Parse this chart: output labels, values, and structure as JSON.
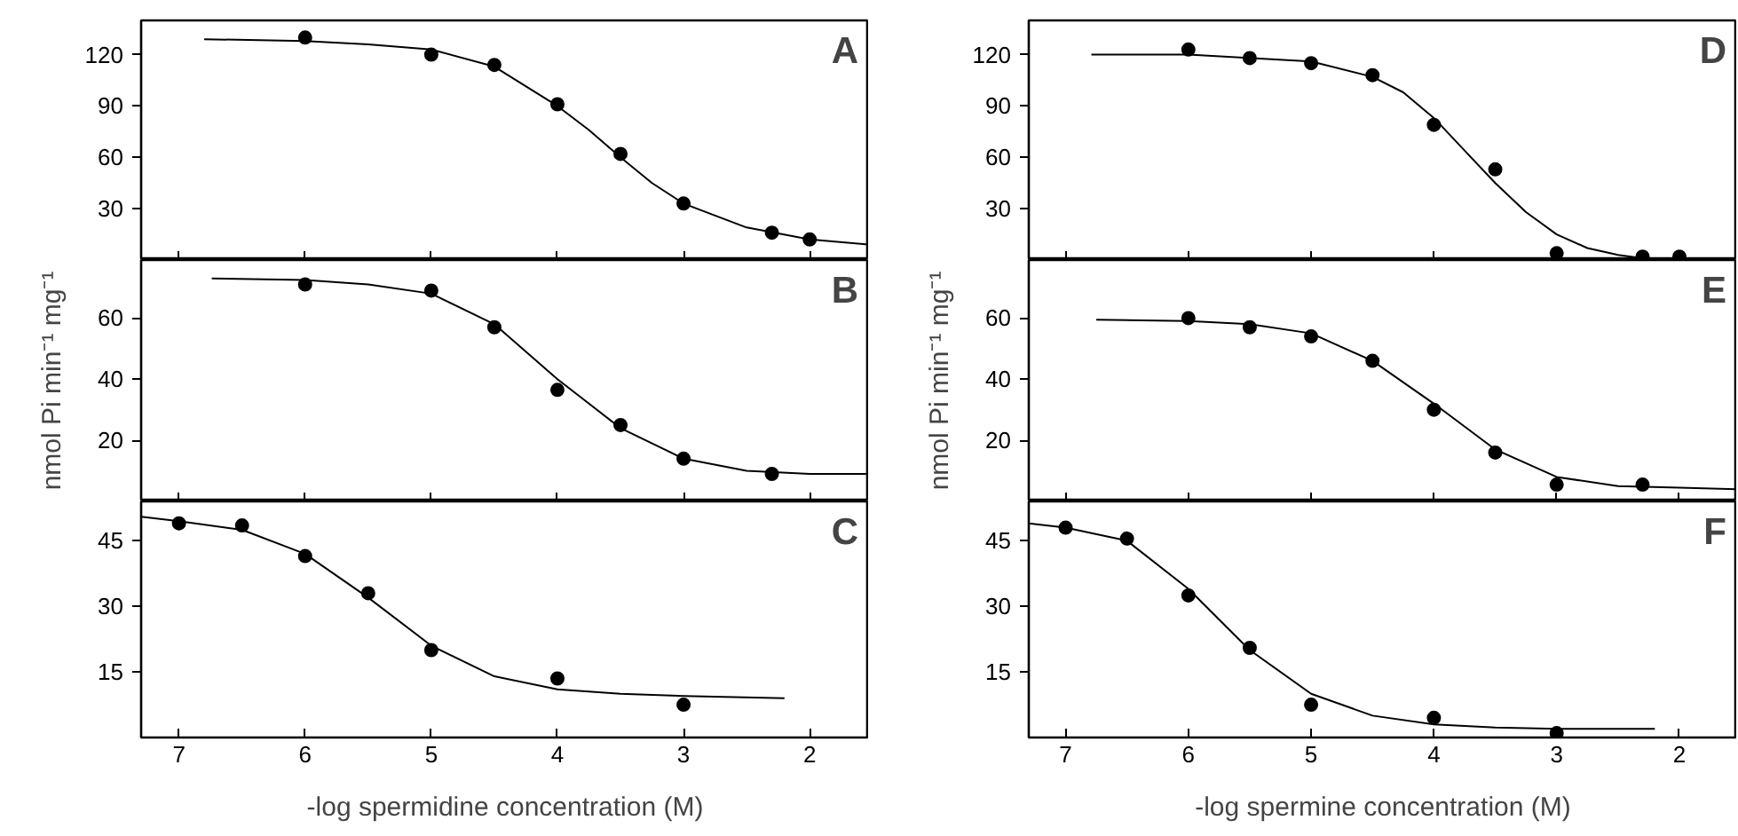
{
  "chart_data": [
    {
      "type": "scatter",
      "xlim": [
        7.3,
        1.53
      ],
      "xticks": [
        7,
        6,
        5,
        4,
        3,
        2
      ],
      "ylim": [
        0,
        140
      ],
      "yticks": [
        30,
        60,
        90,
        120
      ],
      "tick_labels": "y",
      "annotations": [
        "A"
      ],
      "series": [
        {
          "marker": "circle",
          "color": "#000000",
          "x": [
            6,
            5,
            4.5,
            4,
            3.5,
            3,
            2.3,
            2
          ],
          "values": [
            130,
            120,
            114,
            91,
            62,
            33,
            16,
            12
          ]
        },
        {
          "type": "line",
          "color": "#000000",
          "x": [
            6.8,
            6,
            5.5,
            5,
            4.5,
            4,
            3.75,
            3.5,
            3.25,
            3,
            2.5,
            2,
            1.53
          ],
          "values": [
            129,
            128,
            126,
            123,
            113,
            90,
            76,
            60,
            45,
            33,
            19,
            12,
            9
          ]
        }
      ]
    },
    {
      "type": "scatter",
      "xlim": [
        7.3,
        1.53
      ],
      "xticks": [
        7,
        6,
        5,
        4,
        3,
        2
      ],
      "ylim": [
        0,
        79
      ],
      "yticks": [
        20,
        40,
        60
      ],
      "tick_labels": "y",
      "ylabel": "nmol Pi min⁻¹ mg⁻¹",
      "annotations": [
        "B"
      ],
      "series": [
        {
          "marker": "circle",
          "color": "#000000",
          "x": [
            6,
            5,
            4.5,
            4,
            3.5,
            3,
            2.3
          ],
          "values": [
            71,
            69,
            57,
            36.5,
            25,
            14,
            9
          ]
        },
        {
          "type": "line",
          "color": "#000000",
          "x": [
            6.74,
            6,
            5.5,
            5,
            4.5,
            4,
            3.75,
            3.5,
            3,
            2.5,
            2,
            1.53
          ],
          "values": [
            73,
            72.5,
            71,
            68,
            58,
            40,
            32,
            24,
            14,
            10,
            9,
            9
          ]
        }
      ]
    },
    {
      "type": "scatter",
      "xlim": [
        7.3,
        1.53
      ],
      "xticks": [
        7,
        6,
        5,
        4,
        3,
        2
      ],
      "ylim": [
        0,
        54
      ],
      "yticks": [
        15,
        30,
        45
      ],
      "xlabel": "-log spermidine concentration (M)",
      "annotations": [
        "C"
      ],
      "series": [
        {
          "marker": "circle",
          "color": "#000000",
          "x": [
            7,
            6.5,
            6,
            5.5,
            5,
            4,
            3
          ],
          "values": [
            49,
            48.5,
            41.5,
            33,
            20,
            13.5,
            7.5
          ]
        },
        {
          "type": "line",
          "color": "#000000",
          "x": [
            7.3,
            7,
            6.5,
            6,
            5.5,
            5,
            4.5,
            4,
            3.5,
            3,
            2.2
          ],
          "values": [
            50.5,
            49.5,
            47.5,
            42,
            32,
            21,
            14,
            11,
            10,
            9.5,
            9
          ]
        }
      ]
    },
    {
      "type": "scatter",
      "xlim": [
        7.3,
        1.53
      ],
      "xticks": [
        7,
        6,
        5,
        4,
        3,
        2
      ],
      "ylim": [
        0,
        140
      ],
      "yticks": [
        30,
        60,
        90,
        120
      ],
      "tick_labels": "y",
      "annotations": [
        "D"
      ],
      "series": [
        {
          "marker": "circle",
          "color": "#000000",
          "x": [
            6,
            5.5,
            5,
            4.5,
            4,
            3.5,
            3,
            2.3,
            2
          ],
          "values": [
            123,
            118,
            115,
            108,
            79,
            53,
            4,
            2,
            2
          ]
        },
        {
          "type": "line",
          "color": "#000000",
          "x": [
            6.79,
            6,
            5,
            4.5,
            4.25,
            4,
            3.75,
            3.5,
            3.25,
            3,
            2.75,
            2.5,
            2.3,
            1.53
          ],
          "values": [
            120,
            120,
            116,
            107,
            98,
            83,
            64,
            45,
            28,
            15,
            7,
            3,
            1,
            0
          ]
        }
      ]
    },
    {
      "type": "scatter",
      "xlim": [
        7.3,
        1.53
      ],
      "xticks": [
        7,
        6,
        5,
        4,
        3,
        2
      ],
      "ylim": [
        0,
        79
      ],
      "yticks": [
        20,
        40,
        60
      ],
      "tick_labels": "y",
      "ylabel": "nmol Pi min⁻¹ mg⁻¹",
      "annotations": [
        "E"
      ],
      "series": [
        {
          "marker": "circle",
          "color": "#000000",
          "x": [
            6,
            5.5,
            5,
            4.5,
            4,
            3.5,
            3,
            2.3
          ],
          "values": [
            60,
            57,
            54,
            46,
            30,
            16,
            5.5,
            5.5
          ]
        },
        {
          "type": "line",
          "color": "#000000",
          "x": [
            6.75,
            6,
            5.5,
            5,
            4.5,
            4,
            3.5,
            3,
            2.5,
            2,
            1.53
          ],
          "values": [
            59.5,
            59,
            58,
            55,
            46,
            32,
            17,
            8,
            5,
            4.5,
            4
          ]
        }
      ]
    },
    {
      "type": "scatter",
      "xlim": [
        7.3,
        1.53
      ],
      "xticks": [
        7,
        6,
        5,
        4,
        3,
        2
      ],
      "ylim": [
        0,
        54
      ],
      "yticks": [
        15,
        30,
        45
      ],
      "xlabel": "-log spermine concentration (M)",
      "annotations": [
        "F"
      ],
      "series": [
        {
          "marker": "circle",
          "color": "#000000",
          "x": [
            7,
            6.5,
            6,
            5.5,
            5,
            4,
            3
          ],
          "values": [
            48,
            45.5,
            32.5,
            20.5,
            7.5,
            4.5,
            1
          ]
        },
        {
          "type": "line",
          "color": "#000000",
          "x": [
            7.3,
            7,
            6.5,
            6,
            5.5,
            5,
            4.5,
            4,
            3.5,
            3,
            2.2
          ],
          "values": [
            49,
            48,
            45,
            34,
            20,
            10,
            5,
            3,
            2.3,
            2,
            2
          ]
        }
      ]
    }
  ]
}
